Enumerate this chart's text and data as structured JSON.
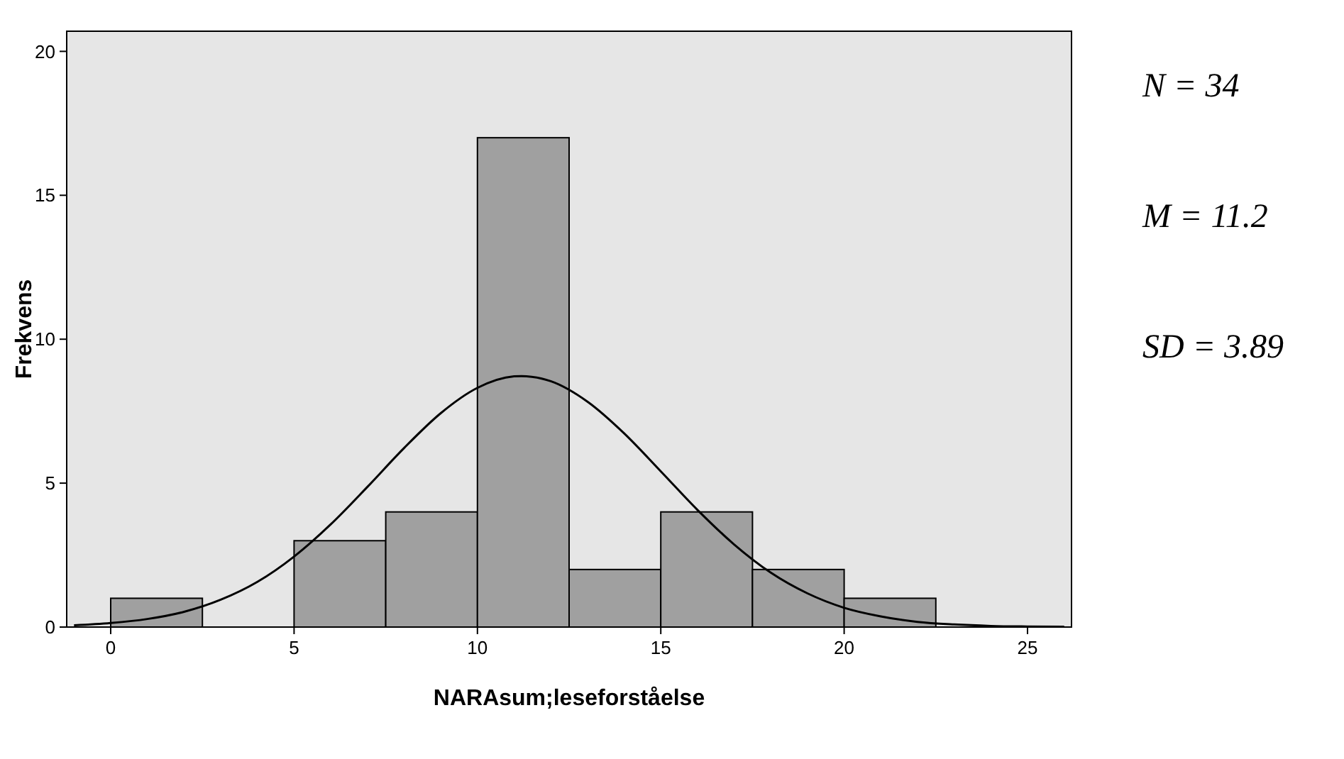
{
  "chart_data": {
    "type": "histogram",
    "xlabel": "NARAsum;leseforståelse",
    "ylabel": "Frekvens",
    "bins": [
      0,
      2.5,
      5,
      7.5,
      10,
      12.5,
      15,
      17.5,
      20,
      22.5
    ],
    "values": [
      1,
      0,
      3,
      4,
      17,
      2,
      4,
      2,
      1
    ],
    "color": "#a0a0a0",
    "series": [
      {
        "type": "line",
        "color": "#000000",
        "x": [
          -1,
          0,
          1,
          2,
          3,
          4,
          5,
          6,
          7,
          8,
          9,
          10,
          11,
          11.2,
          12,
          13,
          14,
          15,
          16,
          17,
          18,
          19,
          20,
          21,
          22,
          23,
          24,
          25,
          26
        ],
        "values": [
          0.06,
          0.14,
          0.28,
          0.53,
          0.95,
          1.57,
          2.45,
          3.57,
          4.87,
          6.22,
          7.43,
          8.31,
          8.71,
          8.72,
          8.54,
          7.83,
          6.73,
          5.41,
          4.07,
          2.87,
          1.89,
          1.17,
          0.67,
          0.37,
          0.18,
          0.09,
          0.04,
          0.02,
          0.01
        ]
      }
    ],
    "xlim": [
      -1.2,
      26.2
    ],
    "ylim": [
      0,
      20.7
    ],
    "xticks": [
      0,
      5,
      10,
      15,
      20,
      25
    ],
    "yticks": [
      0,
      5,
      10,
      15,
      20
    ],
    "annotations": [
      "N = 34",
      "M = 11.2",
      "SD = 3.89"
    ]
  }
}
